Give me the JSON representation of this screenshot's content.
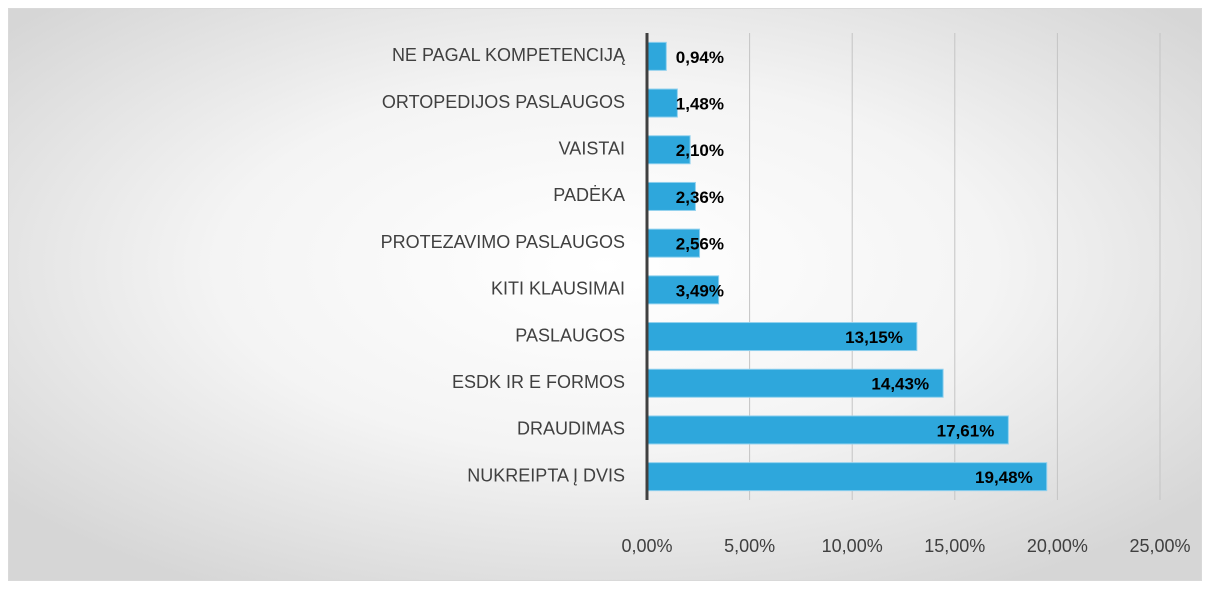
{
  "chart_data": {
    "type": "barh",
    "categories": [
      "NE PAGAL KOMPETENCIJĄ",
      "ORTOPEDIJOS PASLAUGOS",
      "VAISTAI",
      "PADĖKA",
      "PROTEZAVIMO PASLAUGOS",
      "KITI KLAUSIMAI",
      "PASLAUGOS",
      "ESDK IR E FORMOS",
      "DRAUDIMAS",
      "NUKREIPTA Į DVIS"
    ],
    "values": [
      0.94,
      1.48,
      2.1,
      2.36,
      2.56,
      3.49,
      13.15,
      14.43,
      17.61,
      19.48
    ],
    "value_labels": [
      "0,94%",
      "1,48%",
      "2,10%",
      "2,36%",
      "2,56%",
      "3,49%",
      "13,15%",
      "14,43%",
      "17,61%",
      "19,48%"
    ],
    "color": "#2ea7dc",
    "xlim": [
      0,
      25
    ],
    "xticks": [
      {
        "value": 0,
        "label": "0,00%"
      },
      {
        "value": 5,
        "label": "5,00%"
      },
      {
        "value": 10,
        "label": "10,00%"
      },
      {
        "value": 15,
        "label": "15,00%"
      },
      {
        "value": 20,
        "label": "20,00%"
      },
      {
        "value": 25,
        "label": "25,00%"
      }
    ],
    "grid": true
  }
}
